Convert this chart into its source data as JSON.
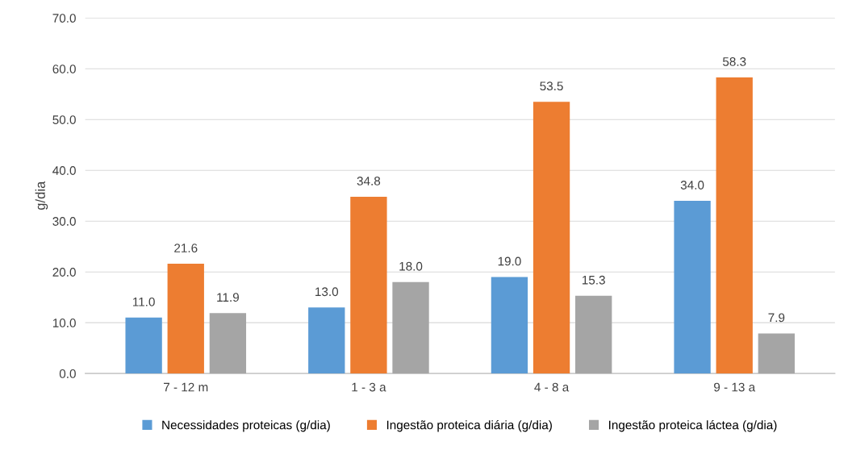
{
  "chart_data": {
    "type": "bar",
    "ylabel": "g/dia",
    "categories": [
      "7 - 12 m",
      "1 - 3 a",
      "4 - 8 a",
      "9 - 13 a"
    ],
    "series": [
      {
        "name": "Necessidades proteicas (g/dia)",
        "color": "#5b9bd5",
        "values": [
          11.0,
          13.0,
          19.0,
          34.0
        ],
        "value_labels": [
          "11.0",
          "13.0",
          "19.0",
          "34.0"
        ]
      },
      {
        "name": "Ingestão proteica diária (g/dia)",
        "color": "#ed7d31",
        "values": [
          21.6,
          34.8,
          53.5,
          58.3
        ],
        "value_labels": [
          "21.6",
          "34.8",
          "53.5",
          "58.3"
        ]
      },
      {
        "name": "Ingestão proteica láctea (g/dia)",
        "color": "#a5a5a5",
        "values": [
          11.9,
          18.0,
          15.3,
          7.9
        ],
        "value_labels": [
          "11.9",
          "18.0",
          "15.3",
          "7.9"
        ]
      }
    ],
    "ylim": [
      0,
      70
    ],
    "yticks": [
      {
        "value": 0,
        "label": "0.0"
      },
      {
        "value": 10,
        "label": "10.0"
      },
      {
        "value": 20,
        "label": "20.0"
      },
      {
        "value": 30,
        "label": "30.0"
      },
      {
        "value": 40,
        "label": "40.0"
      },
      {
        "value": 50,
        "label": "50.0"
      },
      {
        "value": 60,
        "label": "60.0"
      },
      {
        "value": 70,
        "label": "70.0"
      }
    ],
    "grid": "y",
    "legend": "bottom"
  }
}
